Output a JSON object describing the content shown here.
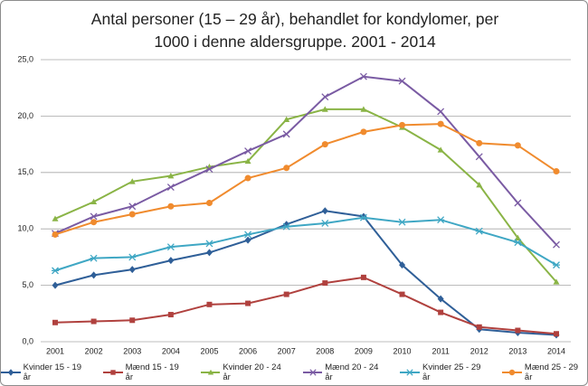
{
  "chart_data": {
    "type": "line",
    "title": "Antal personer (15 – 29 år), behandlet for kondylomer, per 1000 i denne aldersgruppe. 2001 - 2014",
    "categories": [
      "2001",
      "2002",
      "2003",
      "2004",
      "2005",
      "2006",
      "2007",
      "2008",
      "2009",
      "2010",
      "2011",
      "2012",
      "2013",
      "2014"
    ],
    "ylim": [
      0,
      25
    ],
    "yticks": [
      {
        "value": 0,
        "label": "0,0"
      },
      {
        "value": 5,
        "label": "5,0"
      },
      {
        "value": 10,
        "label": "10,0"
      },
      {
        "value": 15,
        "label": "15,0"
      },
      {
        "value": 20,
        "label": "20,0"
      },
      {
        "value": 25,
        "label": "25,0"
      }
    ],
    "grid": true,
    "legend": "bottom",
    "series": [
      {
        "name": "Kvinder 15 - 19 år",
        "color": "#2f5f98",
        "marker": "diamond",
        "values": [
          5.0,
          5.9,
          6.4,
          7.2,
          7.9,
          9.0,
          10.4,
          11.6,
          11.1,
          6.8,
          3.8,
          1.1,
          0.8,
          0.6
        ]
      },
      {
        "name": "Mænd 15 - 19 år",
        "color": "#b0413e",
        "marker": "square",
        "values": [
          1.7,
          1.8,
          1.9,
          2.4,
          3.3,
          3.4,
          4.2,
          5.2,
          5.7,
          4.2,
          2.6,
          1.3,
          1.0,
          0.7
        ]
      },
      {
        "name": "Kvinder 20 - 24 år",
        "color": "#8ab446",
        "marker": "triangle",
        "values": [
          10.9,
          12.4,
          14.2,
          14.7,
          15.5,
          16.0,
          19.7,
          20.6,
          20.6,
          19.0,
          17.0,
          13.9,
          9.2,
          5.3
        ]
      },
      {
        "name": "Mænd 20 - 24 år",
        "color": "#7a5ba3",
        "marker": "x",
        "values": [
          9.6,
          11.1,
          12.0,
          13.7,
          15.3,
          16.9,
          18.4,
          21.7,
          23.5,
          23.1,
          20.4,
          16.4,
          12.3,
          8.6
        ]
      },
      {
        "name": "Kvinder 25 - 29 år",
        "color": "#3fa7c4",
        "marker": "star",
        "values": [
          6.3,
          7.4,
          7.5,
          8.4,
          8.7,
          9.5,
          10.2,
          10.5,
          11.0,
          10.6,
          10.8,
          9.8,
          8.8,
          6.8
        ]
      },
      {
        "name": "Mænd 25 - 29 år",
        "color": "#f08b2e",
        "marker": "circle",
        "values": [
          9.5,
          10.6,
          11.3,
          12.0,
          12.3,
          14.5,
          15.4,
          17.5,
          18.6,
          19.2,
          19.3,
          17.6,
          17.4,
          15.1
        ]
      }
    ]
  }
}
